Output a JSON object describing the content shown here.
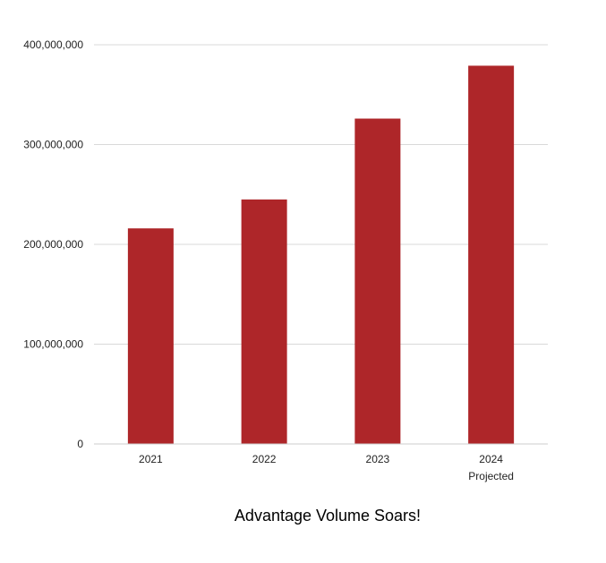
{
  "chart_data": {
    "type": "bar",
    "title": "Advantage Volume Soars!",
    "categories": [
      [
        "2021"
      ],
      [
        "2022"
      ],
      [
        "2023"
      ],
      [
        "2024",
        "Projected"
      ]
    ],
    "values": [
      216000000,
      245000000,
      326000000,
      379000000
    ],
    "ylim": [
      0,
      400000000
    ],
    "yticks": [
      0,
      100000000,
      200000000,
      300000000,
      400000000
    ],
    "ytick_labels": [
      "0",
      "100,000,000",
      "200,000,000",
      "300,000,000",
      "400,000,000"
    ],
    "grid": true,
    "bar_color": "#ae2629",
    "grid_color": "#d9d9d9"
  }
}
